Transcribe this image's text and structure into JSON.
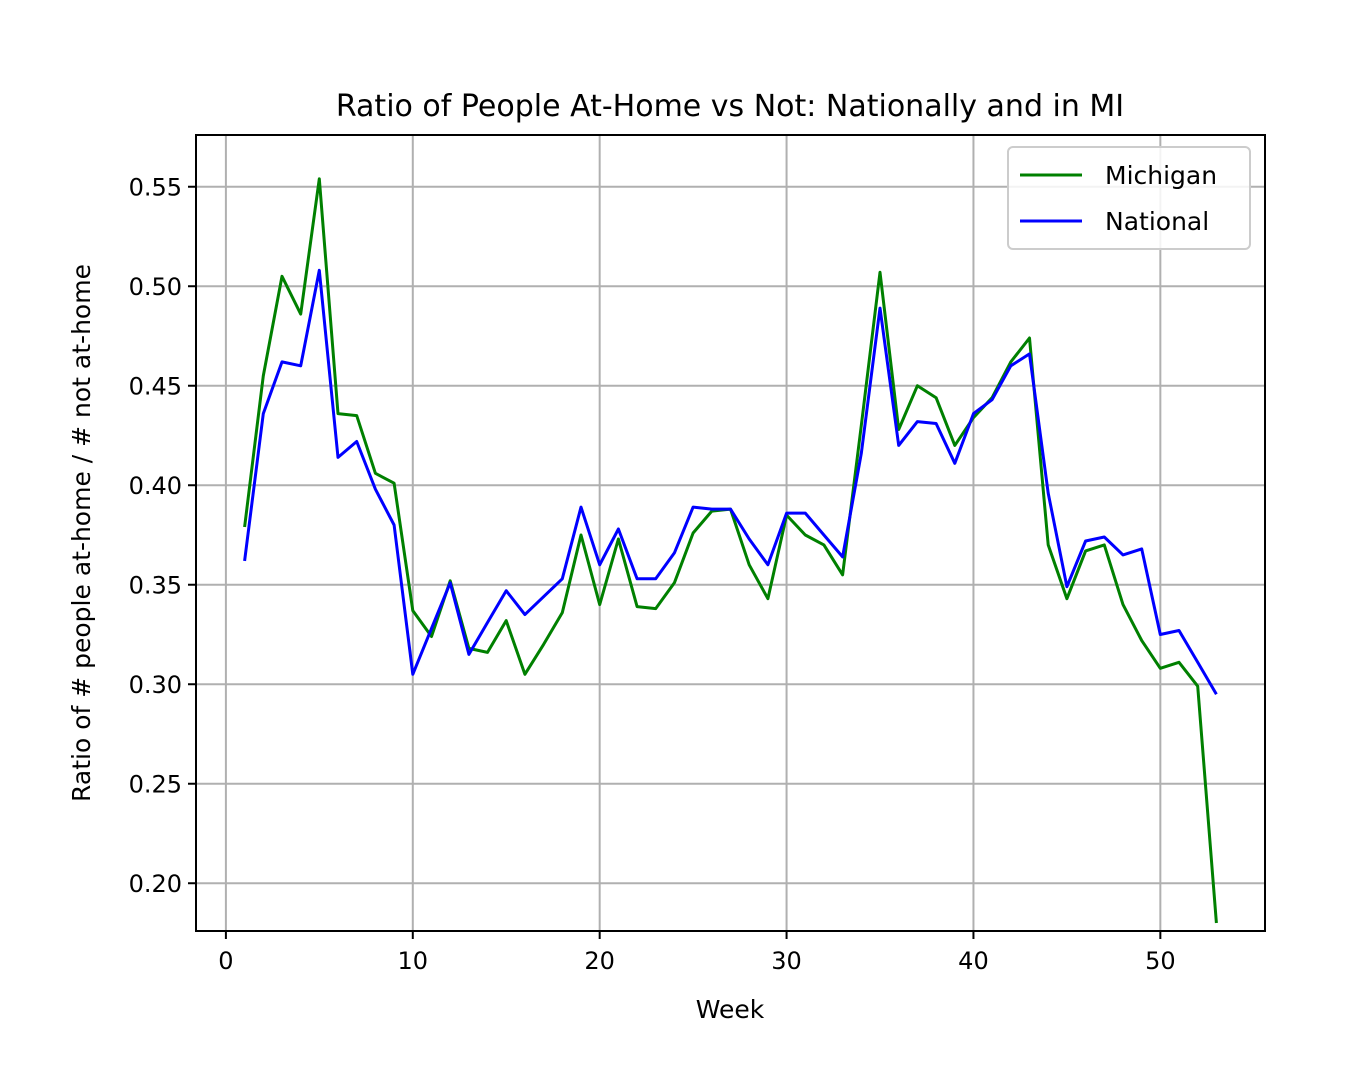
{
  "chart_data": {
    "type": "line",
    "title": "Ratio of People At-Home vs Not: Nationally and in MI",
    "xlabel": "Week",
    "ylabel": "Ratio of # people at-home / # not at-home",
    "xlim": [
      -1.6,
      55.6
    ],
    "ylim": [
      0.176,
      0.576
    ],
    "xticks": [
      0,
      10,
      20,
      30,
      40,
      50
    ],
    "yticks": [
      0.2,
      0.25,
      0.3,
      0.35,
      0.4,
      0.45,
      0.5,
      0.55
    ],
    "xtick_labels": [
      "0",
      "10",
      "20",
      "30",
      "40",
      "50"
    ],
    "ytick_labels": [
      "0.20",
      "0.25",
      "0.30",
      "0.35",
      "0.40",
      "0.45",
      "0.50",
      "0.55"
    ],
    "grid": true,
    "legend_position": "top-right",
    "x": [
      1,
      2,
      3,
      4,
      5,
      6,
      7,
      8,
      9,
      10,
      11,
      12,
      13,
      14,
      15,
      16,
      17,
      18,
      19,
      20,
      21,
      22,
      23,
      24,
      25,
      26,
      27,
      28,
      29,
      30,
      31,
      32,
      33,
      34,
      35,
      36,
      37,
      38,
      39,
      40,
      41,
      42,
      43,
      44,
      45,
      46,
      47,
      48,
      49,
      50,
      51,
      52,
      53
    ],
    "series": [
      {
        "name": "Michigan",
        "color": "#008000",
        "values": [
          0.379,
          0.455,
          0.505,
          0.486,
          0.554,
          0.436,
          0.435,
          0.406,
          0.401,
          0.337,
          0.324,
          0.352,
          0.318,
          0.316,
          0.332,
          0.305,
          0.32,
          0.336,
          0.375,
          0.34,
          0.373,
          0.339,
          0.338,
          0.351,
          0.376,
          0.387,
          0.388,
          0.36,
          0.343,
          0.385,
          0.375,
          0.37,
          0.355,
          0.43,
          0.507,
          0.428,
          0.45,
          0.444,
          0.42,
          0.434,
          0.444,
          0.462,
          0.474,
          0.37,
          0.343,
          0.367,
          0.37,
          0.34,
          0.322,
          0.308,
          0.311,
          0.299,
          0.18
        ]
      },
      {
        "name": "National",
        "color": "#0000ff",
        "values": [
          0.362,
          0.436,
          0.462,
          0.46,
          0.508,
          0.414,
          0.422,
          0.398,
          0.38,
          0.305,
          0.328,
          0.351,
          0.315,
          0.331,
          0.347,
          0.335,
          0.344,
          0.353,
          0.389,
          0.36,
          0.378,
          0.353,
          0.353,
          0.366,
          0.389,
          0.388,
          0.388,
          0.373,
          0.36,
          0.386,
          0.386,
          0.375,
          0.364,
          0.416,
          0.489,
          0.42,
          0.432,
          0.431,
          0.411,
          0.436,
          0.443,
          0.46,
          0.466,
          0.396,
          0.349,
          0.372,
          0.374,
          0.365,
          0.368,
          0.325,
          0.327,
          0.311,
          0.295
        ]
      }
    ]
  }
}
